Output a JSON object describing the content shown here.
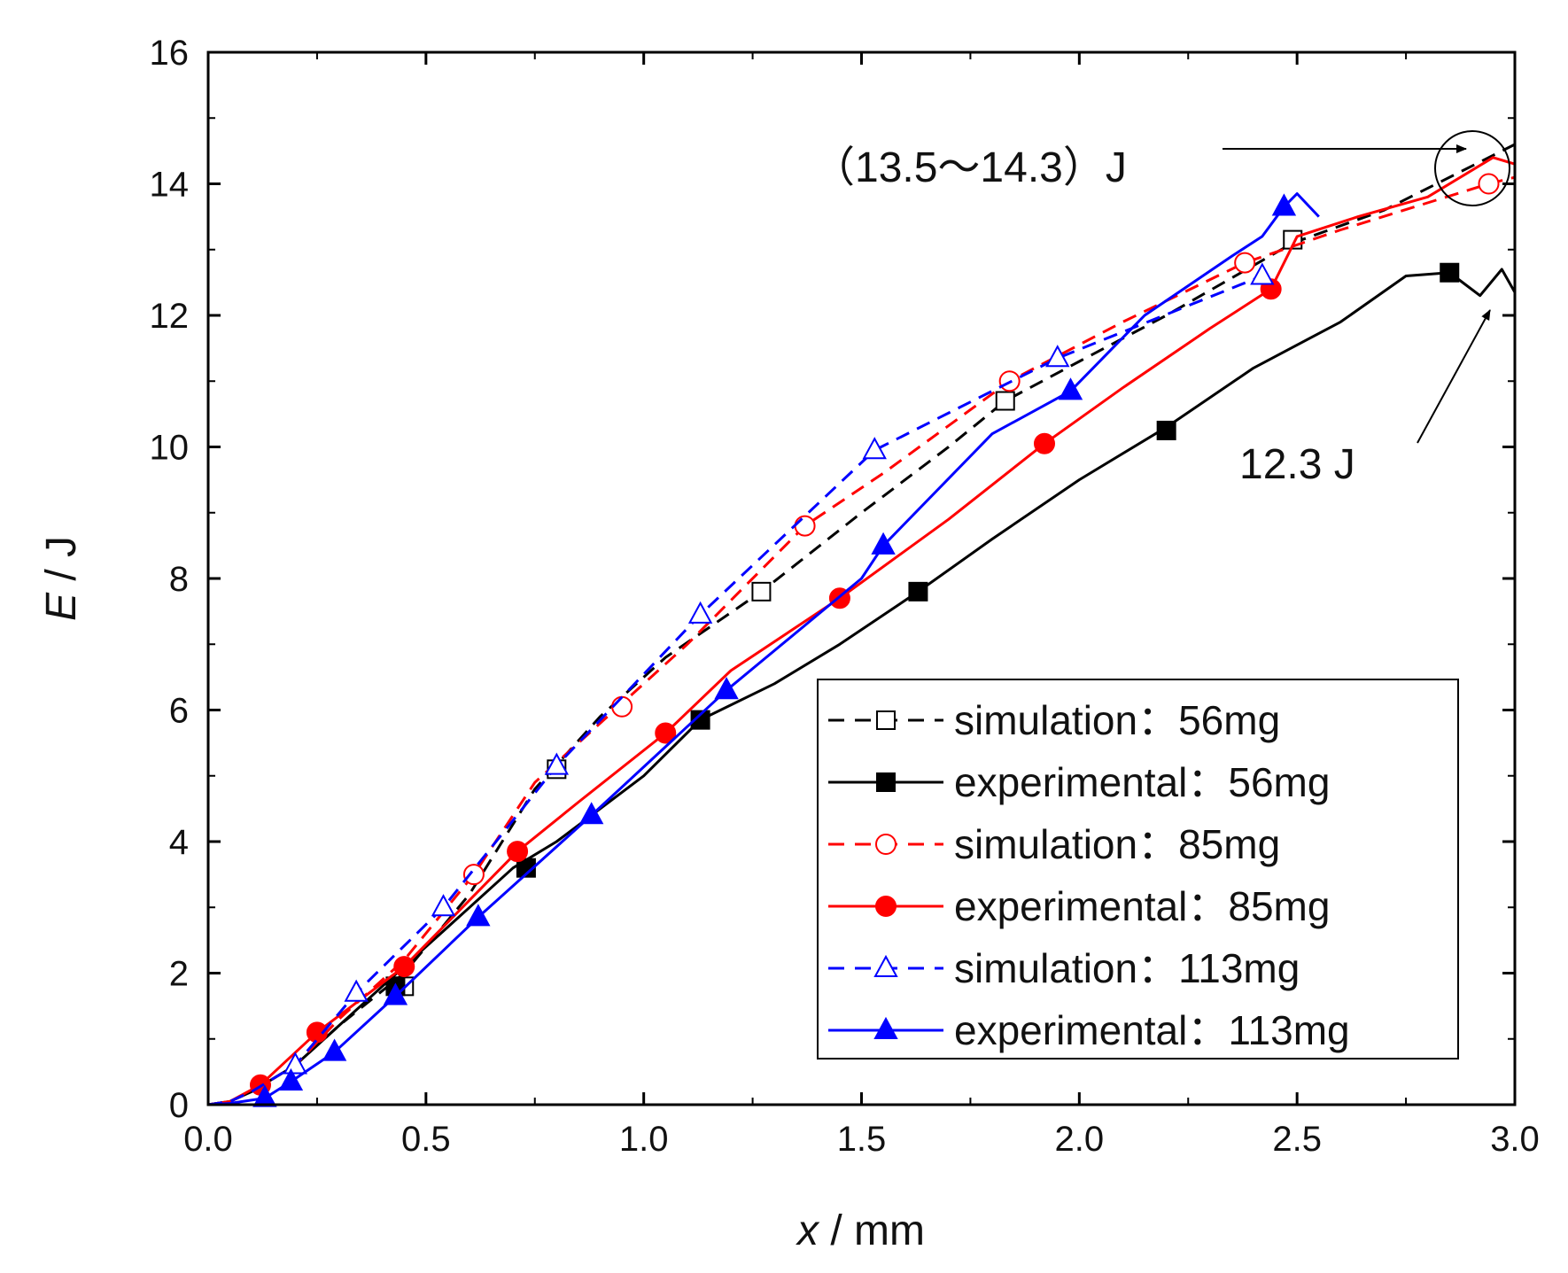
{
  "chart_data": {
    "type": "line",
    "title": "",
    "xlabel": {
      "var": "x",
      "unit": " / mm"
    },
    "ylabel": {
      "var": "E",
      "unit": " / J"
    },
    "xlim": [
      0,
      3.0
    ],
    "ylim": [
      0,
      16
    ],
    "xticks": [
      "0.0",
      "0.5",
      "1.0",
      "1.5",
      "2.0",
      "2.5",
      "3.0"
    ],
    "yticks": [
      "0",
      "2",
      "4",
      "6",
      "8",
      "10",
      "12",
      "14",
      "16"
    ],
    "grid": false,
    "legend_position": "bottom-right",
    "series": [
      {
        "name": "simulation：56mg",
        "color": "#000000",
        "style": "dashed",
        "marker": "square-open",
        "x": [
          0,
          0.05,
          0.1,
          0.2,
          0.3,
          0.45,
          0.6,
          0.75,
          0.9,
          1.05,
          1.27,
          1.5,
          1.7,
          1.83,
          2.0,
          2.2,
          2.49,
          2.7,
          3.0
        ],
        "y": [
          0,
          0.05,
          0.2,
          0.6,
          1.2,
          2.0,
          3.2,
          4.8,
          5.9,
          6.8,
          7.8,
          9.0,
          10.0,
          10.7,
          11.3,
          12.0,
          13.1,
          13.6,
          14.6
        ],
        "markers": [
          [
            0.45,
            1.8
          ],
          [
            0.8,
            5.1
          ],
          [
            1.27,
            7.8
          ],
          [
            1.83,
            10.7
          ],
          [
            2.49,
            13.15
          ]
        ]
      },
      {
        "name": "experimental：56mg",
        "color": "#000000",
        "style": "solid",
        "marker": "square-filled",
        "x": [
          0,
          0.05,
          0.1,
          0.2,
          0.3,
          0.4,
          0.5,
          0.6,
          0.7,
          0.8,
          0.9,
          1.0,
          1.13,
          1.3,
          1.45,
          1.63,
          1.8,
          2.0,
          2.2,
          2.4,
          2.6,
          2.75,
          2.85,
          2.92,
          2.97,
          3.0
        ],
        "y": [
          0,
          0.05,
          0.2,
          0.6,
          1.2,
          1.8,
          2.4,
          3.0,
          3.6,
          4.0,
          4.5,
          5.0,
          5.85,
          6.4,
          7.0,
          7.8,
          8.6,
          9.5,
          10.3,
          11.2,
          11.9,
          12.6,
          12.65,
          12.3,
          12.7,
          12.35
        ],
        "markers": [
          [
            0.43,
            1.8
          ],
          [
            0.73,
            3.6
          ],
          [
            1.13,
            5.85
          ],
          [
            1.63,
            7.8
          ],
          [
            2.2,
            10.25
          ],
          [
            2.85,
            12.65
          ]
        ]
      },
      {
        "name": "simulation：85mg",
        "color": "#ff0000",
        "style": "dashed",
        "marker": "circle-open",
        "x": [
          0,
          0.05,
          0.1,
          0.2,
          0.3,
          0.45,
          0.61,
          0.75,
          0.95,
          1.1,
          1.37,
          1.55,
          1.84,
          2.1,
          2.38,
          2.6,
          2.94,
          3.0
        ],
        "y": [
          0,
          0.05,
          0.2,
          0.6,
          1.3,
          2.2,
          3.5,
          4.9,
          6.1,
          7.0,
          8.8,
          9.6,
          11.0,
          11.9,
          12.8,
          13.3,
          14.0,
          14.1
        ],
        "markers": [
          [
            0.61,
            3.5
          ],
          [
            0.95,
            6.05
          ],
          [
            1.37,
            8.8
          ],
          [
            1.84,
            11.0
          ],
          [
            2.38,
            12.8
          ],
          [
            2.94,
            14.0
          ]
        ]
      },
      {
        "name": "experimental：85mg",
        "color": "#ff0000",
        "style": "solid",
        "marker": "circle-filled",
        "x": [
          0,
          0.05,
          0.12,
          0.25,
          0.45,
          0.71,
          0.85,
          1.05,
          1.2,
          1.45,
          1.7,
          1.92,
          2.1,
          2.3,
          2.44,
          2.5,
          2.64,
          2.8,
          2.95,
          3.0
        ],
        "y": [
          0,
          0.05,
          0.3,
          1.1,
          2.1,
          3.85,
          4.6,
          5.65,
          6.6,
          7.7,
          8.9,
          10.05,
          10.9,
          11.8,
          12.4,
          13.2,
          13.5,
          13.8,
          14.4,
          14.3
        ],
        "markers": [
          [
            0.12,
            0.3
          ],
          [
            0.25,
            1.1
          ],
          [
            0.45,
            2.1
          ],
          [
            0.71,
            3.85
          ],
          [
            1.05,
            5.65
          ],
          [
            1.45,
            7.7
          ],
          [
            1.92,
            10.05
          ],
          [
            2.44,
            12.4
          ]
        ]
      },
      {
        "name": "simulation：113mg",
        "color": "#0000ff",
        "style": "dashed",
        "marker": "triangle-open",
        "x": [
          0,
          0.05,
          0.1,
          0.2,
          0.34,
          0.54,
          0.8,
          1.13,
          1.53,
          1.95,
          2.42
        ],
        "y": [
          0,
          0.05,
          0.2,
          0.6,
          1.7,
          3.0,
          5.15,
          7.45,
          9.95,
          11.35,
          12.6
        ],
        "markers": [
          [
            0.2,
            0.6
          ],
          [
            0.34,
            1.7
          ],
          [
            0.54,
            3.0
          ],
          [
            0.8,
            5.15
          ],
          [
            1.13,
            7.45
          ],
          [
            1.53,
            9.95
          ],
          [
            1.95,
            11.35
          ],
          [
            2.42,
            12.6
          ]
        ]
      },
      {
        "name": "experimental：113mg",
        "color": "#0000ff",
        "style": "solid",
        "marker": "triangle-filled",
        "x": [
          0,
          0.05,
          0.13,
          0.19,
          0.29,
          0.43,
          0.62,
          0.88,
          1.19,
          1.5,
          1.55,
          1.8,
          1.98,
          2.15,
          2.35,
          2.42,
          2.47,
          2.5,
          2.55
        ],
        "y": [
          0,
          0.02,
          0.1,
          0.35,
          0.8,
          1.65,
          2.85,
          4.4,
          6.3,
          8.0,
          8.5,
          10.2,
          10.85,
          12.0,
          12.9,
          13.2,
          13.65,
          13.85,
          13.5
        ],
        "markers": [
          [
            0.13,
            0.1
          ],
          [
            0.19,
            0.35
          ],
          [
            0.29,
            0.8
          ],
          [
            0.43,
            1.65
          ],
          [
            0.62,
            2.85
          ],
          [
            0.88,
            4.4
          ],
          [
            1.19,
            6.3
          ],
          [
            1.55,
            8.5
          ],
          [
            1.98,
            10.85
          ],
          [
            2.47,
            13.65
          ]
        ]
      }
    ],
    "annotations": [
      {
        "text": "（13.5～14.3）J",
        "target": [
          2.96,
          14.2
        ]
      },
      {
        "text": "12.3 J",
        "target": [
          2.97,
          12.3
        ]
      }
    ]
  }
}
